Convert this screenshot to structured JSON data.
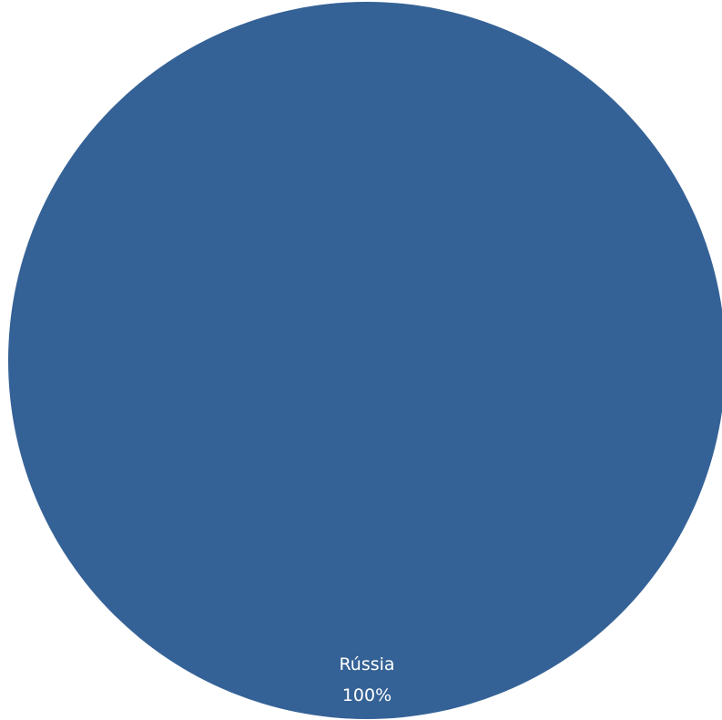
{
  "chart_data": {
    "type": "pie",
    "categories": [
      "Rússia"
    ],
    "values": [
      100
    ],
    "value_labels": [
      "100%"
    ],
    "colors": [
      "#356296"
    ],
    "legend": "none",
    "title": ""
  }
}
